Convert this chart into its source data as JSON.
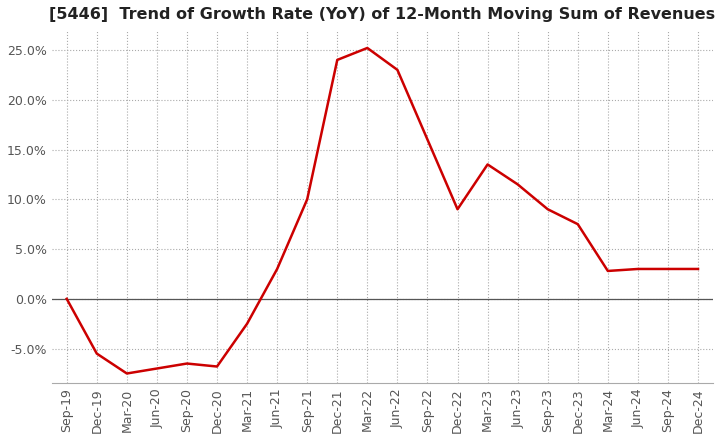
{
  "title": "[5446]  Trend of Growth Rate (YoY) of 12-Month Moving Sum of Revenues",
  "title_fontsize": 11.5,
  "line_color": "#cc0000",
  "background_color": "#ffffff",
  "plot_bg_color": "#ffffff",
  "grid_color": "#aaaaaa",
  "x_labels": [
    "Sep-19",
    "Dec-19",
    "Mar-20",
    "Jun-20",
    "Sep-20",
    "Dec-20",
    "Mar-21",
    "Jun-21",
    "Sep-21",
    "Dec-21",
    "Mar-22",
    "Jun-22",
    "Sep-22",
    "Dec-22",
    "Mar-23",
    "Jun-23",
    "Sep-23",
    "Dec-23",
    "Mar-24",
    "Jun-24",
    "Sep-24",
    "Dec-24"
  ],
  "y_values": [
    0.0,
    -5.5,
    -7.5,
    -7.0,
    -6.5,
    -6.8,
    -2.5,
    3.0,
    10.0,
    24.0,
    25.2,
    23.0,
    16.0,
    9.0,
    13.5,
    11.5,
    9.0,
    7.5,
    2.8,
    3.0,
    3.0,
    3.0
  ],
  "ylim": [
    -8.5,
    27.0
  ],
  "yticks": [
    -5.0,
    0.0,
    5.0,
    10.0,
    15.0,
    20.0,
    25.0
  ],
  "tick_fontsize": 9,
  "tick_color": "#555555",
  "line_width": 1.8
}
